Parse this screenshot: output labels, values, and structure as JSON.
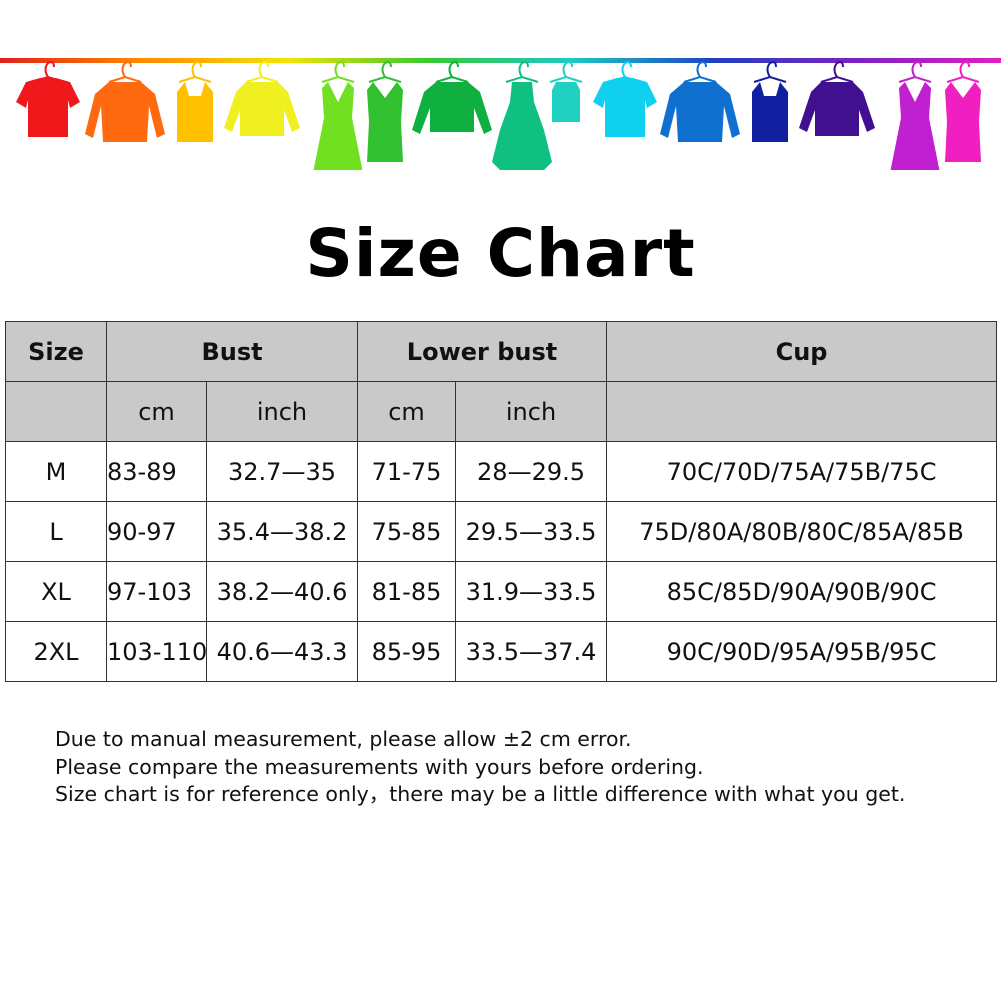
{
  "banner": {
    "rail_colors": [
      "#e0201c",
      "#ff8a00",
      "#f4e400",
      "#38c832",
      "#1ec8c8",
      "#2040c0",
      "#8020c0",
      "#e020c0"
    ],
    "garments": [
      {
        "icon": "tshirt-icon",
        "color": "#f0181a"
      },
      {
        "icon": "shirt-icon",
        "color": "#ff6a10"
      },
      {
        "icon": "tank-top-icon",
        "color": "#ffc000"
      },
      {
        "icon": "cardigan-icon",
        "color": "#f0f020"
      },
      {
        "icon": "dress-icon",
        "color": "#70e020"
      },
      {
        "icon": "belted-dress-icon",
        "color": "#30c030"
      },
      {
        "icon": "sweater-icon",
        "color": "#10b040"
      },
      {
        "icon": "flared-dress-icon",
        "color": "#10c080"
      },
      {
        "icon": "camisole-icon",
        "color": "#20d0c0"
      },
      {
        "icon": "tshirt-icon",
        "color": "#10d0f0"
      },
      {
        "icon": "shirt-icon",
        "color": "#1070d0"
      },
      {
        "icon": "tank-top-icon",
        "color": "#1020a0"
      },
      {
        "icon": "cardigan-icon",
        "color": "#401090"
      },
      {
        "icon": "dress-icon",
        "color": "#c020d0"
      },
      {
        "icon": "belted-dress-icon",
        "color": "#f020c0"
      }
    ]
  },
  "title": "Size Chart",
  "table": {
    "header": [
      "Size",
      "Bust",
      "Lower bust",
      "Cup"
    ],
    "subheader": [
      "cm",
      "inch",
      "cm",
      "inch"
    ],
    "rows": [
      [
        "M",
        "83-89",
        "32.7—35",
        "71-75",
        "28—29.5",
        "70C/70D/75A/75B/75C"
      ],
      [
        "L",
        "90-97",
        "35.4—38.2",
        "75-85",
        "29.5—33.5",
        "75D/80A/80B/80C/85A/85B"
      ],
      [
        "XL",
        "97-103",
        "38.2—40.6",
        "81-85",
        "31.9—33.5",
        "85C/85D/90A/90B/90C"
      ],
      [
        "2XL",
        "103-110",
        "40.6—43.3",
        "85-95",
        "33.5—37.4",
        "90C/90D/95A/95B/95C"
      ]
    ]
  },
  "notes": [
    "Due to manual measurement, please allow ±2 cm error.",
    "Please compare the measurements with yours before ordering.",
    "Size chart is for reference only，there may be a little difference with what you get."
  ],
  "colors": {
    "header_bg": "#c9c9c9",
    "border": "#333333"
  }
}
